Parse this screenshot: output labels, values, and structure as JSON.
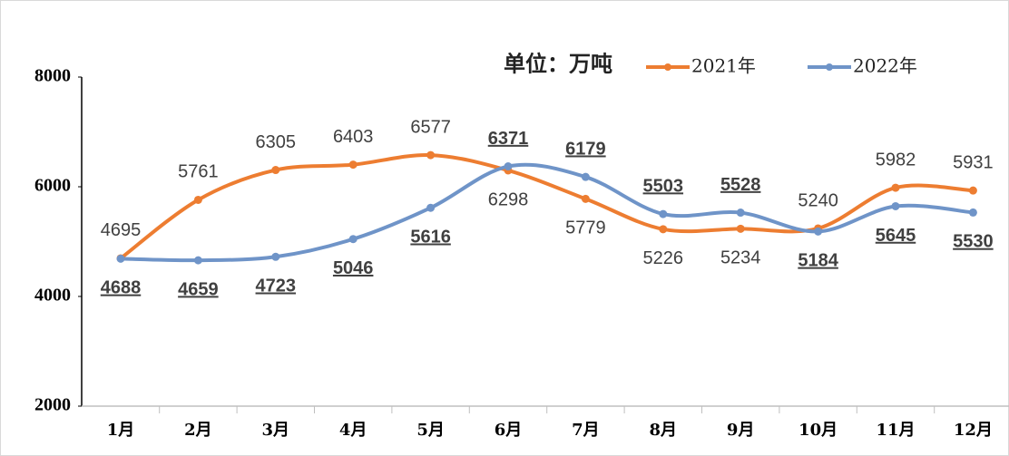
{
  "chart_data": {
    "type": "line",
    "unit_label": "单位：万吨",
    "categories": [
      "1月",
      "2月",
      "3月",
      "4月",
      "5月",
      "6月",
      "7月",
      "8月",
      "9月",
      "10月",
      "11月",
      "12月"
    ],
    "series": [
      {
        "name": "2021年",
        "color": "#ed7d31",
        "values": [
          4695,
          5761,
          6305,
          6403,
          6577,
          6298,
          5779,
          5226,
          5234,
          5240,
          5982,
          5931
        ]
      },
      {
        "name": "2022年",
        "color": "#6f94c8",
        "values": [
          4688,
          4659,
          4723,
          5046,
          5616,
          6371,
          6179,
          5503,
          5528,
          5184,
          5645,
          5530
        ]
      }
    ],
    "ylim": [
      2000,
      8000
    ],
    "yticks": [
      2000,
      4000,
      6000,
      8000
    ],
    "grid": false,
    "smooth": true
  }
}
